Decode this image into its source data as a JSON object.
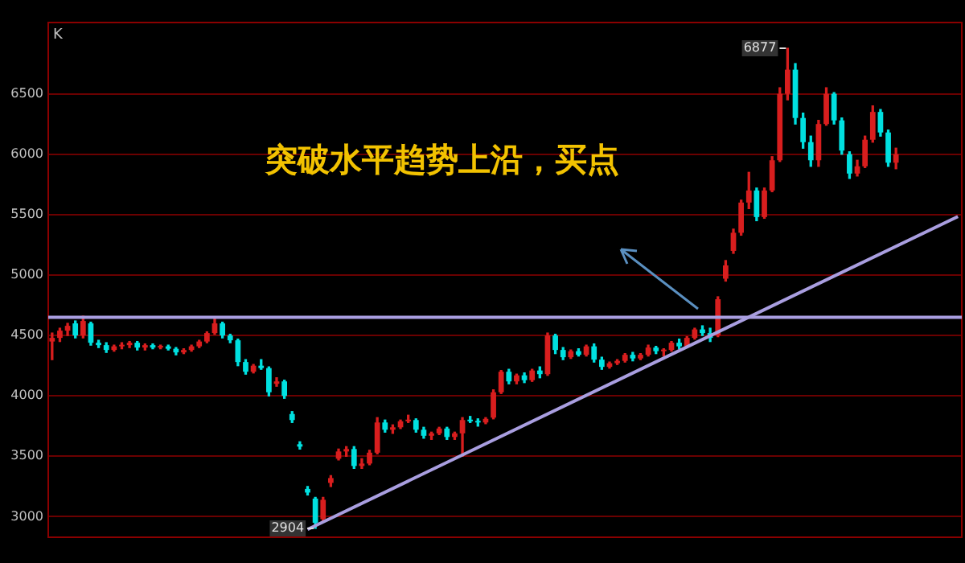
{
  "chart_data": {
    "type": "candlestick",
    "ylabel": "K",
    "annotations": [
      "突破水平趋势上沿，买点",
      {
        "text": "6877",
        "y": 6877
      },
      {
        "text": "2904",
        "y": 2904
      }
    ],
    "categories": [
      null,
      null,
      null,
      null,
      null,
      null,
      null,
      null,
      null,
      null,
      null,
      null,
      null,
      null,
      null,
      null,
      null,
      null,
      null,
      null,
      null,
      null,
      null,
      null,
      null,
      null,
      null,
      null,
      null,
      null,
      null,
      null,
      null,
      null,
      null,
      null,
      null,
      null,
      null,
      null,
      null,
      null,
      null,
      null,
      null,
      null,
      null,
      null,
      null,
      null,
      null,
      null,
      null,
      null,
      null,
      null,
      null,
      null,
      null,
      null,
      null,
      null,
      null,
      null,
      null,
      null,
      null,
      null,
      null,
      null,
      null,
      null,
      null,
      null,
      null,
      null,
      null,
      null,
      null,
      null,
      null,
      null,
      null,
      null,
      null,
      null,
      null,
      null,
      null,
      null,
      null,
      null,
      null,
      null,
      null,
      null,
      null,
      null,
      null,
      null,
      null,
      null,
      null,
      null,
      null,
      null,
      null,
      null,
      null,
      null,
      null,
      null,
      null,
      null,
      null,
      null,
      null,
      null
    ],
    "ohlc": [
      [
        4450,
        4520,
        4300,
        4480
      ],
      [
        4480,
        4560,
        4450,
        4540
      ],
      [
        4540,
        4600,
        4500,
        4580
      ],
      [
        4600,
        4620,
        4480,
        4500
      ],
      [
        4500,
        4660,
        4480,
        4620
      ],
      [
        4600,
        4610,
        4420,
        4440
      ],
      [
        4440,
        4460,
        4400,
        4420
      ],
      [
        4420,
        4440,
        4360,
        4380
      ],
      [
        4380,
        4420,
        4370,
        4410
      ],
      [
        4410,
        4440,
        4390,
        4420
      ],
      [
        4420,
        4450,
        4400,
        4440
      ],
      [
        4440,
        4450,
        4380,
        4400
      ],
      [
        4400,
        4430,
        4380,
        4420
      ],
      [
        4420,
        4430,
        4390,
        4400
      ],
      [
        4400,
        4420,
        4390,
        4410
      ],
      [
        4410,
        4420,
        4380,
        4390
      ],
      [
        4390,
        4400,
        4340,
        4360
      ],
      [
        4360,
        4390,
        4350,
        4380
      ],
      [
        4380,
        4420,
        4370,
        4410
      ],
      [
        4410,
        4460,
        4400,
        4450
      ],
      [
        4450,
        4530,
        4440,
        4520
      ],
      [
        4520,
        4650,
        4510,
        4600
      ],
      [
        4600,
        4610,
        4480,
        4500
      ],
      [
        4500,
        4510,
        4440,
        4460
      ],
      [
        4460,
        4470,
        4250,
        4280
      ],
      [
        4280,
        4300,
        4180,
        4200
      ],
      [
        4200,
        4260,
        4190,
        4250
      ],
      [
        4250,
        4300,
        4220,
        4230
      ],
      [
        4230,
        4240,
        4000,
        4030
      ],
      [
        4100,
        4150,
        4080,
        4120
      ],
      [
        4120,
        4130,
        3980,
        4000
      ],
      [
        3850,
        3870,
        3780,
        3800
      ],
      [
        3600,
        3620,
        3560,
        3580
      ],
      [
        3230,
        3250,
        3180,
        3200
      ],
      [
        3150,
        3160,
        2904,
        2950
      ],
      [
        2980,
        3160,
        2960,
        3140
      ],
      [
        3280,
        3340,
        3250,
        3320
      ],
      [
        3480,
        3560,
        3470,
        3540
      ],
      [
        3540,
        3580,
        3500,
        3560
      ],
      [
        3560,
        3580,
        3400,
        3420
      ],
      [
        3420,
        3480,
        3400,
        3440
      ],
      [
        3440,
        3550,
        3430,
        3530
      ],
      [
        3530,
        3820,
        3520,
        3780
      ],
      [
        3780,
        3800,
        3700,
        3720
      ],
      [
        3720,
        3760,
        3690,
        3740
      ],
      [
        3740,
        3800,
        3730,
        3790
      ],
      [
        3790,
        3840,
        3780,
        3800
      ],
      [
        3800,
        3810,
        3700,
        3720
      ],
      [
        3720,
        3740,
        3650,
        3670
      ],
      [
        3670,
        3700,
        3640,
        3690
      ],
      [
        3690,
        3740,
        3680,
        3730
      ],
      [
        3730,
        3740,
        3640,
        3660
      ],
      [
        3660,
        3700,
        3640,
        3690
      ],
      [
        3690,
        3820,
        3500,
        3800
      ],
      [
        3800,
        3830,
        3780,
        3790
      ],
      [
        3790,
        3810,
        3750,
        3780
      ],
      [
        3780,
        3820,
        3770,
        3810
      ],
      [
        3820,
        4050,
        3810,
        4030
      ],
      [
        4030,
        4210,
        4020,
        4200
      ],
      [
        4200,
        4220,
        4100,
        4120
      ],
      [
        4120,
        4180,
        4100,
        4170
      ],
      [
        4170,
        4190,
        4110,
        4130
      ],
      [
        4130,
        4220,
        4120,
        4210
      ],
      [
        4210,
        4240,
        4150,
        4180
      ],
      [
        4180,
        4520,
        4170,
        4500
      ],
      [
        4500,
        4510,
        4350,
        4380
      ],
      [
        4380,
        4400,
        4300,
        4320
      ],
      [
        4320,
        4380,
        4310,
        4370
      ],
      [
        4370,
        4390,
        4330,
        4340
      ],
      [
        4340,
        4420,
        4330,
        4410
      ],
      [
        4410,
        4430,
        4280,
        4300
      ],
      [
        4300,
        4320,
        4220,
        4240
      ],
      [
        4240,
        4280,
        4230,
        4270
      ],
      [
        4270,
        4300,
        4260,
        4290
      ],
      [
        4290,
        4350,
        4280,
        4340
      ],
      [
        4340,
        4360,
        4290,
        4310
      ],
      [
        4310,
        4350,
        4300,
        4340
      ],
      [
        4340,
        4420,
        4330,
        4400
      ],
      [
        4400,
        4410,
        4350,
        4370
      ],
      [
        4370,
        4390,
        4330,
        4380
      ],
      [
        4380,
        4450,
        4370,
        4440
      ],
      [
        4440,
        4470,
        4390,
        4410
      ],
      [
        4410,
        4490,
        4400,
        4480
      ],
      [
        4480,
        4560,
        4470,
        4550
      ],
      [
        4550,
        4580,
        4500,
        4520
      ],
      [
        4520,
        4560,
        4450,
        4480
      ],
      [
        4500,
        4820,
        4490,
        4800
      ],
      [
        4970,
        5120,
        4950,
        5080
      ],
      [
        5200,
        5380,
        5180,
        5350
      ],
      [
        5350,
        5620,
        5330,
        5600
      ],
      [
        5600,
        5850,
        5550,
        5700
      ],
      [
        5700,
        5720,
        5450,
        5480
      ],
      [
        5480,
        5720,
        5470,
        5700
      ],
      [
        5700,
        5980,
        5690,
        5950
      ],
      [
        5950,
        6550,
        5940,
        6500
      ],
      [
        6500,
        6877,
        6450,
        6700
      ],
      [
        6700,
        6750,
        6250,
        6300
      ],
      [
        6300,
        6340,
        6050,
        6100
      ],
      [
        6100,
        6150,
        5900,
        5950
      ],
      [
        5950,
        6280,
        5900,
        6250
      ],
      [
        6250,
        6550,
        6240,
        6500
      ],
      [
        6500,
        6510,
        6250,
        6280
      ],
      [
        6280,
        6300,
        6000,
        6030
      ],
      [
        6000,
        6020,
        5800,
        5840
      ],
      [
        5840,
        5950,
        5820,
        5900
      ],
      [
        5900,
        6150,
        5890,
        6120
      ],
      [
        6120,
        6400,
        6100,
        6350
      ],
      [
        6350,
        6370,
        6150,
        6180
      ],
      [
        6180,
        6200,
        5900,
        5930
      ],
      [
        5930,
        6050,
        5880,
        6000
      ],
      null,
      null,
      null,
      null,
      null,
      null,
      null,
      null
    ],
    "series": [
      {
        "type": "line",
        "color": "#a99ee0",
        "values": [
          null,
          null,
          null,
          null,
          null,
          null,
          null,
          null,
          null,
          null,
          null,
          null,
          null,
          null,
          null,
          null,
          null,
          null,
          null,
          null,
          null,
          null,
          null,
          null,
          null,
          null,
          null,
          null,
          null,
          null,
          null,
          null,
          null,
          2895,
          null,
          null,
          null,
          null,
          null,
          null,
          null,
          null,
          null,
          null,
          null,
          null,
          null,
          null,
          null,
          null,
          null,
          null,
          null,
          null,
          null,
          null,
          null,
          null,
          null,
          null,
          null,
          null,
          null,
          null,
          null,
          null,
          null,
          null,
          null,
          null,
          null,
          null,
          null,
          null,
          null,
          null,
          null,
          null,
          null,
          null,
          null,
          null,
          null,
          null,
          null,
          null,
          null,
          null,
          null,
          null,
          null,
          null,
          null,
          null,
          null,
          null,
          null,
          null,
          null,
          null,
          null,
          null,
          null,
          null,
          null,
          null,
          null,
          null,
          null,
          null,
          null,
          null,
          null,
          null,
          null,
          null,
          null,
          5484
        ]
      }
    ],
    "ref_lines": [
      {
        "axis": "y",
        "value": 4650,
        "color": "#a99ee0"
      }
    ],
    "ylim": [
      2830,
      7090
    ],
    "yticks": [
      3000,
      3500,
      4000,
      4500,
      5000,
      5500,
      6000,
      6500
    ],
    "grid": "y",
    "legend": false,
    "marker": "none",
    "line_style": "solid"
  }
}
